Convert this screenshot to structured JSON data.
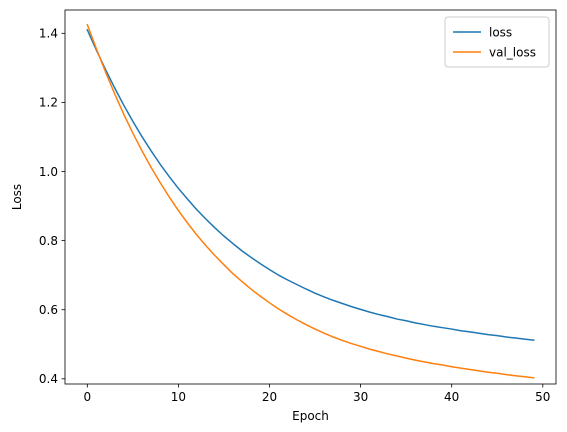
{
  "chart_data": {
    "type": "line",
    "title": "",
    "xlabel": "Epoch",
    "ylabel": "Loss",
    "xlim": [
      -2.45,
      51.45
    ],
    "ylim": [
      0.385,
      1.4675
    ],
    "xticks": [
      0,
      10,
      20,
      30,
      40,
      50
    ],
    "xtick_labels": [
      "0",
      "10",
      "20",
      "30",
      "40",
      "50"
    ],
    "yticks": [
      0.4,
      0.6,
      0.8,
      1.0,
      1.2,
      1.4
    ],
    "ytick_labels": [
      "0.4",
      "0.6",
      "0.8",
      "1.0",
      "1.2",
      "1.4"
    ],
    "grid": false,
    "legend": "upper right",
    "x": [
      0,
      1,
      2,
      3,
      4,
      5,
      6,
      7,
      8,
      9,
      10,
      11,
      12,
      13,
      14,
      15,
      16,
      17,
      18,
      19,
      20,
      21,
      22,
      23,
      24,
      25,
      26,
      27,
      28,
      29,
      30,
      31,
      32,
      33,
      34,
      35,
      36,
      37,
      38,
      39,
      40,
      41,
      42,
      43,
      44,
      45,
      46,
      47,
      48,
      49
    ],
    "series": [
      {
        "name": "loss",
        "color": "#1f77b4",
        "values": [
          1.41,
          1.351,
          1.295,
          1.242,
          1.192,
          1.145,
          1.101,
          1.06,
          1.021,
          0.985,
          0.951,
          0.92,
          0.89,
          0.863,
          0.837,
          0.813,
          0.791,
          0.77,
          0.751,
          0.733,
          0.716,
          0.7,
          0.686,
          0.673,
          0.66,
          0.648,
          0.637,
          0.627,
          0.618,
          0.609,
          0.601,
          0.593,
          0.586,
          0.58,
          0.573,
          0.568,
          0.562,
          0.557,
          0.552,
          0.548,
          0.544,
          0.539,
          0.536,
          0.532,
          0.528,
          0.525,
          0.521,
          0.518,
          0.515,
          0.512
        ]
      },
      {
        "name": "val_loss",
        "color": "#ff7f0e",
        "values": [
          1.425,
          1.355,
          1.288,
          1.225,
          1.166,
          1.111,
          1.06,
          1.012,
          0.968,
          0.926,
          0.887,
          0.851,
          0.817,
          0.786,
          0.757,
          0.73,
          0.704,
          0.681,
          0.659,
          0.639,
          0.62,
          0.602,
          0.586,
          0.571,
          0.557,
          0.544,
          0.532,
          0.521,
          0.511,
          0.502,
          0.494,
          0.486,
          0.479,
          0.472,
          0.466,
          0.46,
          0.454,
          0.449,
          0.444,
          0.44,
          0.435,
          0.431,
          0.427,
          0.423,
          0.419,
          0.416,
          0.412,
          0.409,
          0.406,
          0.403
        ]
      }
    ]
  }
}
